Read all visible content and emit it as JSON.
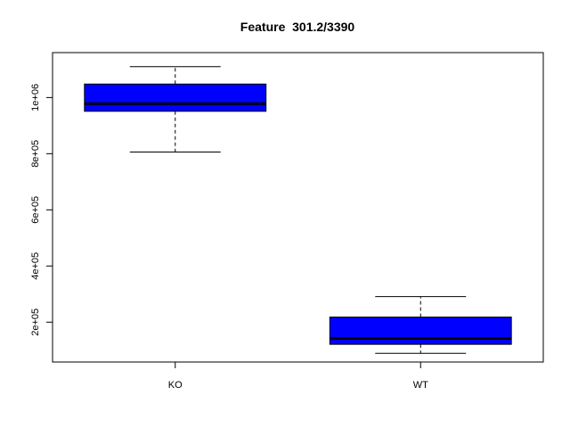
{
  "chart_data": {
    "type": "box",
    "title": "Feature  301.2/3390",
    "xlabel": "",
    "ylabel": "",
    "categories": [
      "KO",
      "WT"
    ],
    "boxes": [
      {
        "category": "KO",
        "min": 806000,
        "q1": 951000,
        "median": 978000,
        "q3": 1048000,
        "max": 1110000
      },
      {
        "category": "WT",
        "min": 89000,
        "q1": 121000,
        "median": 142000,
        "q3": 218000,
        "max": 291000
      }
    ],
    "ylim": [
      58000,
      1160000
    ],
    "yticks": [
      200000,
      400000,
      600000,
      800000,
      1000000
    ],
    "ytick_labels": [
      "2e+05",
      "4e+05",
      "6e+05",
      "8e+05",
      "1e+06"
    ],
    "box_color": "#0000ff",
    "grid": false,
    "legend": "none"
  }
}
